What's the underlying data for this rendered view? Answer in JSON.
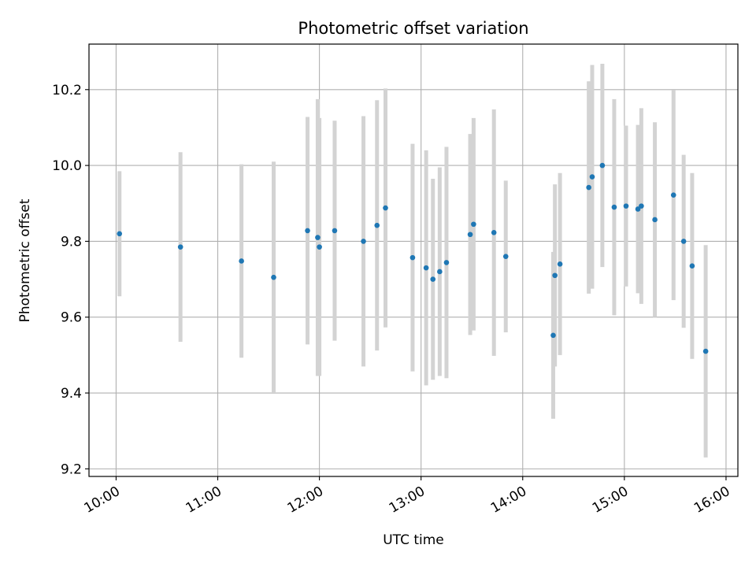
{
  "chart_data": {
    "type": "scatter",
    "title": "Photometric offset variation",
    "xlabel": "UTC time",
    "ylabel": "Photometric offset",
    "x_tick_labels": [
      "10:00",
      "11:00",
      "12:00",
      "13:00",
      "14:00",
      "15:00",
      "16:00"
    ],
    "x_ticks": [
      "10:00",
      "11:00",
      "12:00",
      "13:00",
      "14:00",
      "15:00",
      "16:00"
    ],
    "xlim": [
      "09:44",
      "16:07"
    ],
    "y_ticks": [
      9.2,
      9.4,
      9.6,
      9.8,
      10.0,
      10.2
    ],
    "y_tick_labels": [
      "9.2",
      "9.4",
      "9.6",
      "9.8",
      "10.0",
      "10.2"
    ],
    "ylim": [
      9.18,
      10.32
    ],
    "grid": true,
    "series": [
      {
        "marker_color": "#1f77b4",
        "errorbar_color": "#d3d3d3",
        "points": [
          {
            "time": "10:02",
            "y": 9.82,
            "yerr": 0.165
          },
          {
            "time": "10:38",
            "y": 9.785,
            "yerr": 0.25
          },
          {
            "time": "11:14",
            "y": 9.748,
            "yerr": 0.255
          },
          {
            "time": "11:33",
            "y": 9.705,
            "yerr": 0.305
          },
          {
            "time": "11:53",
            "y": 9.828,
            "yerr": 0.3
          },
          {
            "time": "11:59",
            "y": 9.81,
            "yerr": 0.365
          },
          {
            "time": "12:00",
            "y": 9.785,
            "yerr": 0.34
          },
          {
            "time": "12:09",
            "y": 9.828,
            "yerr": 0.29
          },
          {
            "time": "12:26",
            "y": 9.8,
            "yerr": 0.33
          },
          {
            "time": "12:34",
            "y": 9.842,
            "yerr": 0.33
          },
          {
            "time": "12:39",
            "y": 9.888,
            "yerr": 0.315
          },
          {
            "time": "12:55",
            "y": 9.757,
            "yerr": 0.3
          },
          {
            "time": "13:03",
            "y": 9.73,
            "yerr": 0.31
          },
          {
            "time": "13:07",
            "y": 9.7,
            "yerr": 0.265
          },
          {
            "time": "13:11",
            "y": 9.72,
            "yerr": 0.275
          },
          {
            "time": "13:15",
            "y": 9.744,
            "yerr": 0.305
          },
          {
            "time": "13:29",
            "y": 9.818,
            "yerr": 0.265
          },
          {
            "time": "13:31",
            "y": 9.845,
            "yerr": 0.28
          },
          {
            "time": "13:43",
            "y": 9.823,
            "yerr": 0.325
          },
          {
            "time": "13:50",
            "y": 9.76,
            "yerr": 0.2
          },
          {
            "time": "14:18",
            "y": 9.552,
            "yerr": 0.22
          },
          {
            "time": "14:19",
            "y": 9.71,
            "yerr": 0.24
          },
          {
            "time": "14:22",
            "y": 9.74,
            "yerr": 0.24
          },
          {
            "time": "14:39",
            "y": 9.942,
            "yerr": 0.28
          },
          {
            "time": "14:41",
            "y": 9.97,
            "yerr": 0.295
          },
          {
            "time": "14:47",
            "y": 10.0,
            "yerr": 0.268
          },
          {
            "time": "14:54",
            "y": 9.89,
            "yerr": 0.285
          },
          {
            "time": "15:01",
            "y": 9.893,
            "yerr": 0.212
          },
          {
            "time": "15:08",
            "y": 9.885,
            "yerr": 0.222
          },
          {
            "time": "15:10",
            "y": 9.893,
            "yerr": 0.258
          },
          {
            "time": "15:18",
            "y": 9.857,
            "yerr": 0.257
          },
          {
            "time": "15:29",
            "y": 9.922,
            "yerr": 0.277
          },
          {
            "time": "15:35",
            "y": 9.8,
            "yerr": 0.228
          },
          {
            "time": "15:40",
            "y": 9.735,
            "yerr": 0.245
          },
          {
            "time": "15:48",
            "y": 9.51,
            "yerr": 0.28
          }
        ]
      }
    ]
  }
}
